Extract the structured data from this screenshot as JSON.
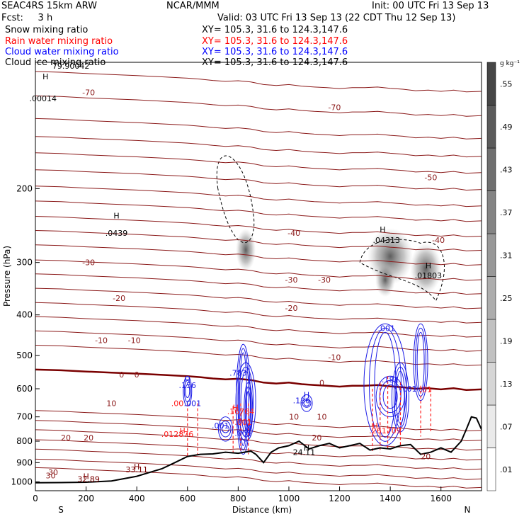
{
  "header": {
    "model": "SEAC4RS 15km ARW",
    "center": "NCAR/MMM",
    "init": "Init: 00 UTC Fri 13 Sep 13",
    "fcst": "Fcst:     3 h",
    "valid": "Valid: 03 UTC Fri 13 Sep 13 (22 CDT Thu 12 Sep 13)",
    "xsec": "XY= 105.3, 31.6 to 124.3,147.6"
  },
  "legend": [
    {
      "name": "Snow mixing ratio",
      "color": "#000000"
    },
    {
      "name": "Rain water mixing ratio",
      "color": "#ff0000"
    },
    {
      "name": "Cloud water mixing ratio",
      "color": "#0000ff"
    },
    {
      "name": "Cloud ice mixing ratio",
      "color": "#000000"
    }
  ],
  "colors": {
    "temperature": "#8b1a1a",
    "freezing": "#7a0000",
    "rain": "#ff2020",
    "cloud": "#1a1ae6",
    "terrain": "#000000"
  },
  "chart_data": {
    "type": "cross-section",
    "xlabel": "Distance (km)",
    "ylabel": "Pressure (hPa)",
    "xlim": [
      0,
      1760
    ],
    "ylim": [
      1050,
      100
    ],
    "y_scale": "log",
    "x_ticks": [
      0,
      200,
      400,
      600,
      800,
      1000,
      1200,
      1400,
      1600
    ],
    "y_ticks": [
      200,
      300,
      400,
      500,
      600,
      700,
      800,
      900,
      1000
    ],
    "x_end_labels": {
      "left": "S",
      "right": "N"
    },
    "colorbar": {
      "unit": "g kg⁻¹",
      "labels": [
        ".01",
        ".07",
        ".13",
        ".19",
        ".25",
        ".31",
        ".37",
        ".43",
        ".49",
        ".55"
      ]
    },
    "temperature_labels": [
      {
        "x": 210,
        "p": 118,
        "text": "-70"
      },
      {
        "x": 1180,
        "p": 128,
        "text": "-70"
      },
      {
        "x": 1560,
        "p": 188,
        "text": "-50"
      },
      {
        "x": 1020,
        "p": 255,
        "text": "-40"
      },
      {
        "x": 1590,
        "p": 265,
        "text": "-40"
      },
      {
        "x": 210,
        "p": 300,
        "text": "-30"
      },
      {
        "x": 1010,
        "p": 330,
        "text": "-30"
      },
      {
        "x": 1140,
        "p": 330,
        "text": "-30"
      },
      {
        "x": 330,
        "p": 365,
        "text": "-20"
      },
      {
        "x": 1010,
        "p": 385,
        "text": "-20"
      },
      {
        "x": 260,
        "p": 460,
        "text": "-10"
      },
      {
        "x": 390,
        "p": 460,
        "text": "-10"
      },
      {
        "x": 1180,
        "p": 505,
        "text": "-10"
      },
      {
        "x": 340,
        "p": 555,
        "text": "0"
      },
      {
        "x": 400,
        "p": 555,
        "text": "0"
      },
      {
        "x": 1130,
        "p": 580,
        "text": "0"
      },
      {
        "x": 300,
        "p": 650,
        "text": "10"
      },
      {
        "x": 1020,
        "p": 700,
        "text": "10"
      },
      {
        "x": 1130,
        "p": 700,
        "text": "10"
      },
      {
        "x": 120,
        "p": 785,
        "text": "20"
      },
      {
        "x": 210,
        "p": 785,
        "text": "20"
      },
      {
        "x": 1110,
        "p": 785,
        "text": "20"
      },
      {
        "x": 1540,
        "p": 870,
        "text": "20"
      },
      {
        "x": 70,
        "p": 950,
        "text": "30"
      },
      {
        "x": 60,
        "p": 965,
        "text": "30"
      }
    ],
    "freezing_level": [
      [
        0,
        540
      ],
      [
        100,
        542
      ],
      [
        200,
        546
      ],
      [
        300,
        549
      ],
      [
        400,
        552
      ],
      [
        500,
        556
      ],
      [
        600,
        560
      ],
      [
        650,
        563
      ],
      [
        700,
        567
      ],
      [
        750,
        570
      ],
      [
        800,
        568
      ],
      [
        850,
        572
      ],
      [
        900,
        580
      ],
      [
        950,
        583
      ],
      [
        1000,
        580
      ],
      [
        1050,
        585
      ],
      [
        1100,
        588
      ],
      [
        1150,
        590
      ],
      [
        1200,
        593
      ],
      [
        1250,
        590
      ],
      [
        1300,
        590
      ],
      [
        1350,
        588
      ],
      [
        1400,
        592
      ],
      [
        1450,
        595
      ],
      [
        1500,
        600
      ],
      [
        1550,
        598
      ],
      [
        1600,
        602
      ],
      [
        1650,
        598
      ],
      [
        1700,
        604
      ],
      [
        1760,
        602
      ]
    ],
    "terrain": [
      [
        0,
        1005
      ],
      [
        100,
        1004
      ],
      [
        200,
        1002
      ],
      [
        300,
        995
      ],
      [
        400,
        970
      ],
      [
        450,
        950
      ],
      [
        500,
        930
      ],
      [
        550,
        900
      ],
      [
        600,
        870
      ],
      [
        650,
        860
      ],
      [
        700,
        858
      ],
      [
        750,
        850
      ],
      [
        800,
        855
      ],
      [
        850,
        845
      ],
      [
        870,
        860
      ],
      [
        900,
        900
      ],
      [
        930,
        850
      ],
      [
        960,
        830
      ],
      [
        1000,
        820
      ],
      [
        1040,
        800
      ],
      [
        1080,
        835
      ],
      [
        1120,
        820
      ],
      [
        1160,
        810
      ],
      [
        1200,
        830
      ],
      [
        1240,
        820
      ],
      [
        1280,
        810
      ],
      [
        1320,
        840
      ],
      [
        1360,
        830
      ],
      [
        1400,
        835
      ],
      [
        1440,
        820
      ],
      [
        1480,
        815
      ],
      [
        1520,
        860
      ],
      [
        1560,
        850
      ],
      [
        1600,
        830
      ],
      [
        1640,
        850
      ],
      [
        1680,
        800
      ],
      [
        1700,
        750
      ],
      [
        1720,
        700
      ],
      [
        1740,
        705
      ],
      [
        1760,
        750
      ]
    ],
    "labels": [
      {
        "x": 30,
        "p": 122,
        "text": ".00014",
        "color": "#000000"
      },
      {
        "x": 320,
        "p": 255,
        "text": ".0439",
        "color": "#000000"
      },
      {
        "x": 1385,
        "p": 265,
        "text": ".04313",
        "color": "#000000"
      },
      {
        "x": 1550,
        "p": 322,
        "text": ".01803",
        "color": "#000000"
      },
      {
        "x": 140,
        "p": 102,
        "text": "79.90042",
        "color": "#000000"
      },
      {
        "x": 600,
        "p": 588,
        "text": ".156",
        "color": "#1a1ae6"
      },
      {
        "x": 800,
        "p": 550,
        "text": ".783",
        "color": "#1a1ae6"
      },
      {
        "x": 1050,
        "p": 640,
        "text": ".136",
        "color": "#1a1ae6"
      },
      {
        "x": 1385,
        "p": 430,
        "text": ".001",
        "color": "#1a1ae6"
      },
      {
        "x": 1400,
        "p": 570,
        "text": ".181",
        "color": "#1a1ae6"
      },
      {
        "x": 1480,
        "p": 600,
        "text": ".01",
        "color": "#1a1ae6"
      },
      {
        "x": 730,
        "p": 735,
        "text": ".001",
        "color": "#1a1ae6"
      },
      {
        "x": 820,
        "p": 765,
        "text": ".001",
        "color": "#1a1ae6"
      },
      {
        "x": 620,
        "p": 650,
        "text": ".001",
        "color": "#1a1ae6"
      },
      {
        "x": 560,
        "p": 650,
        "text": ".00",
        "color": "#ff2020"
      },
      {
        "x": 810,
        "p": 680,
        "text": ".16764",
        "color": "#ff2020"
      },
      {
        "x": 820,
        "p": 720,
        "text": ".001",
        "color": "#ff2020"
      },
      {
        "x": 560,
        "p": 770,
        "text": ".012876",
        "color": "#ff2020"
      },
      {
        "x": 1380,
        "p": 755,
        "text": ".261709",
        "color": "#ff2020"
      },
      {
        "x": 1540,
        "p": 602,
        "text": ".01",
        "color": "#ff2020"
      },
      {
        "x": 1060,
        "p": 850,
        "text": "24.11",
        "color": "#000000"
      },
      {
        "x": 400,
        "p": 935,
        "text": "33.11",
        "color": "#7a0000"
      },
      {
        "x": 210,
        "p": 985,
        "text": "32.89",
        "color": "#7a0000"
      }
    ],
    "h_markers": [
      {
        "x": 40,
        "p": 108,
        "color": "#000000"
      },
      {
        "x": 320,
        "p": 232,
        "color": "#000000"
      },
      {
        "x": 1370,
        "p": 250,
        "color": "#000000"
      },
      {
        "x": 1550,
        "p": 305,
        "color": "#000000"
      },
      {
        "x": 600,
        "p": 570,
        "color": "#1a1ae6"
      },
      {
        "x": 1070,
        "p": 620,
        "color": "#1a1ae6"
      },
      {
        "x": 790,
        "p": 665,
        "color": "#ff2020"
      },
      {
        "x": 580,
        "p": 755,
        "color": "#ff2020"
      },
      {
        "x": 1340,
        "p": 735,
        "color": "#ff2020"
      },
      {
        "x": 1070,
        "p": 830,
        "color": "#000000"
      },
      {
        "x": 400,
        "p": 920,
        "color": "#7a0000"
      },
      {
        "x": 200,
        "p": 970,
        "color": "#7a0000"
      }
    ]
  }
}
